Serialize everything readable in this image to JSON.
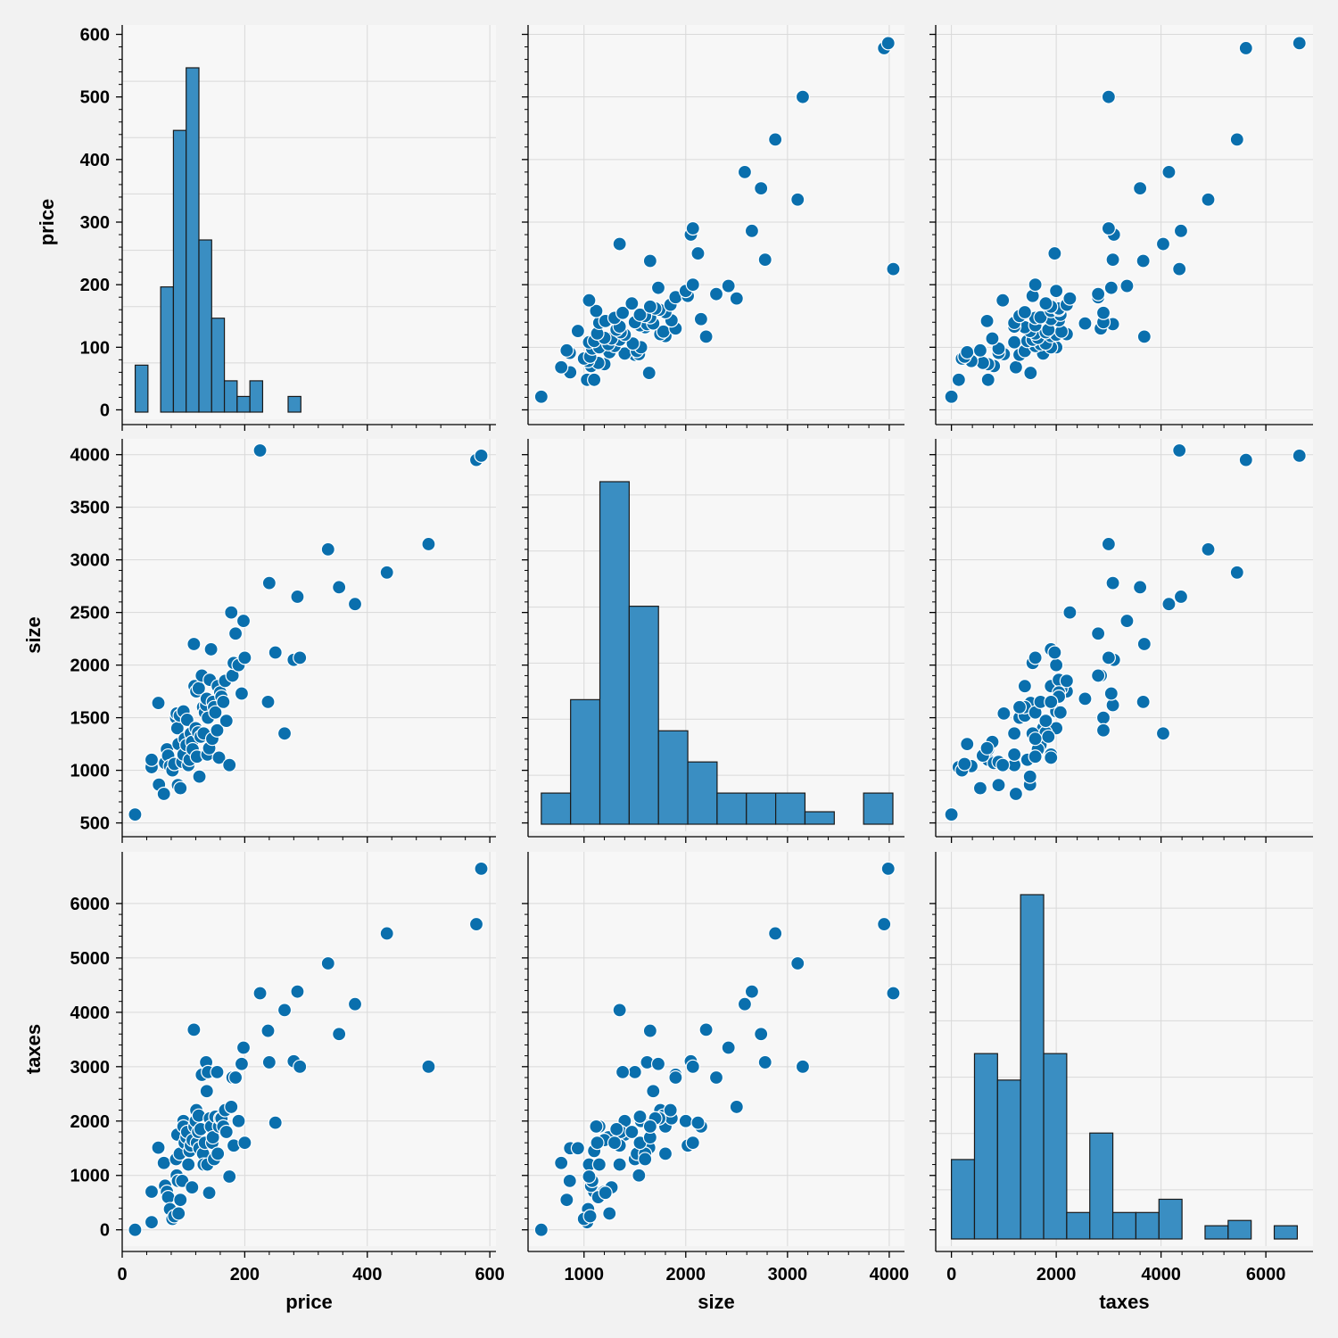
{
  "chart_data": {
    "type": "pairplot",
    "variables": [
      "price",
      "size",
      "taxes"
    ],
    "colors": {
      "marker": "#0a6fad",
      "bar": "#3a8ec2",
      "bar_edge": "#1a1a1a",
      "panel_bg": "#f7f7f7",
      "grid": "#d9d9d9"
    },
    "axes": {
      "price": {
        "label": "price",
        "range": [
          0,
          610
        ],
        "ticks": [
          0,
          200,
          400,
          600
        ],
        "row_ticks": [
          0,
          100,
          200,
          300,
          400,
          500,
          600
        ],
        "row_range": [
          -15,
          615
        ]
      },
      "size": {
        "label": "size",
        "range": [
          450,
          4150
        ],
        "ticks": [
          1000,
          2000,
          3000,
          4000
        ],
        "row_ticks": [
          500,
          1000,
          1500,
          2000,
          2500,
          3000,
          3500,
          4000
        ],
        "row_range": [
          420,
          4150
        ]
      },
      "taxes": {
        "label": "taxes",
        "range": [
          -300,
          6900
        ],
        "ticks": [
          0,
          2000,
          4000,
          6000
        ],
        "row_ticks": [
          0,
          1000,
          2000,
          3000,
          4000,
          5000,
          6000
        ],
        "row_range": [
          -300,
          6950
        ]
      }
    },
    "histograms": {
      "price": {
        "edges": [
          21.2,
          42.0,
          62.8,
          83.6,
          104.4,
          125.2,
          146.0,
          166.8,
          187.6,
          208.4,
          229.2,
          250.0,
          270.8,
          291.6,
          312.4,
          333.2,
          354.0,
          374.8,
          395.6,
          416.4,
          437.2,
          458.0,
          478.8,
          499.6,
          520.4,
          541.2,
          562.0,
          582.8
        ],
        "counts": [
          3,
          0,
          8,
          18,
          22,
          11,
          6,
          2,
          1,
          2,
          0,
          0,
          1,
          0,
          0,
          0,
          0,
          0,
          0,
          0,
          0,
          0,
          0,
          0,
          0,
          0,
          0
        ]
      },
      "size": {
        "edges": [
          580,
          868,
          1156,
          1444,
          1732,
          2020,
          2308,
          2596,
          2884,
          3172,
          3460,
          3748,
          4036
        ],
        "counts": [
          1,
          4,
          11,
          7,
          3,
          2,
          1,
          1,
          1,
          0.4,
          0,
          1
        ]
      },
      "taxes": {
        "edges": [
          0,
          440,
          880,
          1320,
          1760,
          2200,
          2640,
          3080,
          3520,
          3960,
          4400,
          4840,
          5280,
          5720,
          6160,
          6600
        ],
        "counts": [
          3,
          7,
          6,
          13,
          7,
          1,
          4,
          1,
          1,
          1.5,
          0,
          0.5,
          0.7,
          0,
          0.5
        ]
      },
      "count_max_rows": {
        "price": 26,
        "size": 11.5,
        "taxes": 14
      },
      "note_scale": "histogram bar heights drawn relative to diagonal panel height"
    },
    "points": [
      [
        21,
        580,
        0
      ],
      [
        48,
        1030,
        140
      ],
      [
        60,
        864,
        1500
      ],
      [
        59,
        1640,
        1510
      ],
      [
        48,
        1100,
        700
      ],
      [
        68,
        776,
        1230
      ],
      [
        70,
        1070,
        810
      ],
      [
        73,
        1200,
        700
      ],
      [
        75,
        1140,
        600
      ],
      [
        78,
        1040,
        380
      ],
      [
        82,
        1000,
        200
      ],
      [
        85,
        1060,
        250
      ],
      [
        88,
        1500,
        1300
      ],
      [
        89,
        1540,
        1000
      ],
      [
        90,
        1400,
        1750
      ],
      [
        91,
        860,
        900
      ],
      [
        92,
        1250,
        300
      ],
      [
        94,
        1520,
        1400
      ],
      [
        95,
        830,
        550
      ],
      [
        98,
        1080,
        900
      ],
      [
        100,
        1560,
        2000
      ],
      [
        100,
        1150,
        1900
      ],
      [
        102,
        1300,
        1600
      ],
      [
        105,
        1240,
        1700
      ],
      [
        106,
        1480,
        1800
      ],
      [
        108,
        1050,
        1200
      ],
      [
        110,
        1100,
        1450
      ],
      [
        112,
        1350,
        1550
      ],
      [
        114,
        1270,
        780
      ],
      [
        115,
        1200,
        1650
      ],
      [
        117,
        2200,
        3680
      ],
      [
        118,
        1800,
        1900
      ],
      [
        120,
        1400,
        2000
      ],
      [
        121,
        1750,
        2200
      ],
      [
        122,
        1130,
        1600
      ],
      [
        124,
        1360,
        1800
      ],
      [
        125,
        1780,
        2100
      ],
      [
        126,
        940,
        1500
      ],
      [
        128,
        1320,
        1850
      ],
      [
        130,
        1900,
        2850
      ],
      [
        132,
        1600,
        1400
      ],
      [
        133,
        1350,
        1200
      ],
      [
        135,
        1550,
        1600
      ],
      [
        137,
        1620,
        3080
      ],
      [
        138,
        1680,
        2550
      ],
      [
        139,
        1150,
        1200
      ],
      [
        140,
        1500,
        2900
      ],
      [
        142,
        1210,
        680
      ],
      [
        143,
        1860,
        2050
      ],
      [
        145,
        2150,
        1900
      ],
      [
        147,
        1300,
        1600
      ],
      [
        148,
        1650,
        1700
      ],
      [
        150,
        1600,
        1300
      ],
      [
        152,
        1550,
        2080
      ],
      [
        155,
        1380,
        2900
      ],
      [
        156,
        1800,
        1400
      ],
      [
        158,
        1120,
        1900
      ],
      [
        160,
        1740,
        2050
      ],
      [
        162,
        1700,
        2050
      ],
      [
        165,
        1650,
        1900
      ],
      [
        168,
        1850,
        2200
      ],
      [
        170,
        1470,
        1800
      ],
      [
        175,
        1050,
        980
      ],
      [
        178,
        2500,
        2260
      ],
      [
        180,
        1900,
        2800
      ],
      [
        182,
        2020,
        1550
      ],
      [
        185,
        2300,
        2800
      ],
      [
        190,
        2000,
        2000
      ],
      [
        195,
        1730,
        3050
      ],
      [
        198,
        2420,
        3350
      ],
      [
        200,
        2070,
        1600
      ],
      [
        225,
        4040,
        4350
      ],
      [
        238,
        1650,
        3660
      ],
      [
        240,
        2780,
        3080
      ],
      [
        250,
        2120,
        1970
      ],
      [
        265,
        1350,
        4040
      ],
      [
        280,
        2050,
        3100
      ],
      [
        286,
        2650,
        4380
      ],
      [
        290,
        2070,
        3000
      ],
      [
        336,
        3100,
        4900
      ],
      [
        354,
        2740,
        3600
      ],
      [
        380,
        2580,
        4150
      ],
      [
        432,
        2880,
        5450
      ],
      [
        500,
        3150,
        3000
      ],
      [
        578,
        3950,
        5620
      ],
      [
        586,
        3990,
        6640
      ]
    ]
  }
}
